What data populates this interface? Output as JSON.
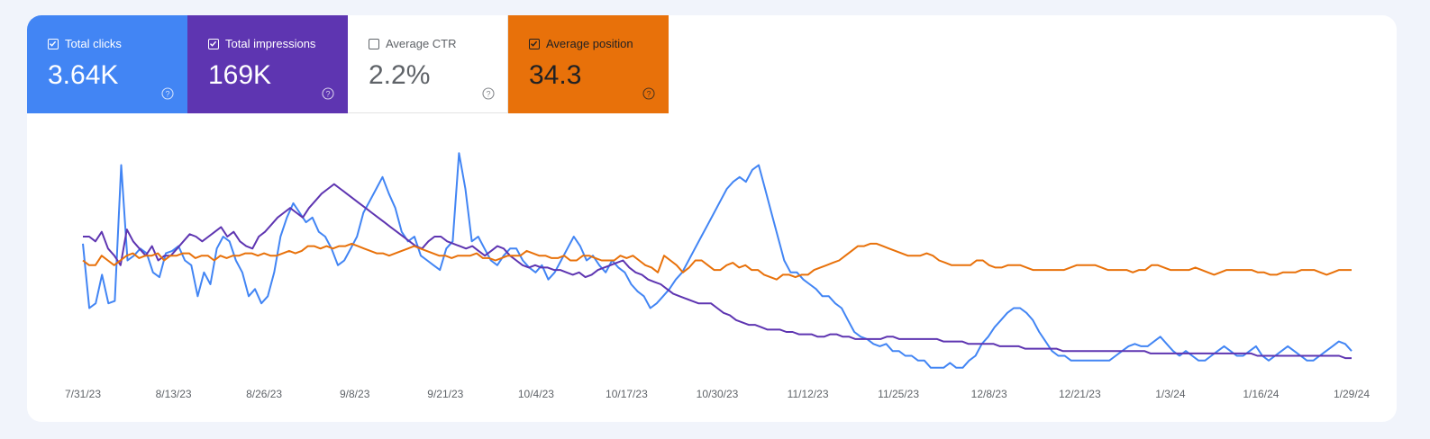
{
  "metrics": [
    {
      "label": "Total clicks",
      "value": "3.64K",
      "checked": true,
      "bg": "#4285f4",
      "fg": "#ffffff",
      "icon": "help-circle-icon"
    },
    {
      "label": "Total impressions",
      "value": "169K",
      "checked": true,
      "bg": "#5e35b1",
      "fg": "#ffffff",
      "icon": "help-circle-icon"
    },
    {
      "label": "Average CTR",
      "value": "2.2%",
      "checked": false,
      "bg": "#ffffff",
      "fg": "#5f6368",
      "icon": "help-circle-icon"
    },
    {
      "label": "Average position",
      "value": "34.3",
      "checked": true,
      "bg": "#e8710a",
      "fg": "#202124",
      "icon": "help-circle-icon"
    }
  ],
  "chart_data": {
    "type": "line",
    "title": "",
    "xlabel": "",
    "ylabel": "",
    "grid": false,
    "legend": "metric tiles above chart",
    "x_tick_labels": [
      "7/31/23",
      "8/13/23",
      "8/26/23",
      "9/8/23",
      "9/21/23",
      "10/4/23",
      "10/17/23",
      "10/30/23",
      "11/12/23",
      "11/25/23",
      "12/8/23",
      "12/21/23",
      "1/3/24",
      "1/16/24",
      "1/29/24"
    ],
    "x_range": [
      "7/31/23",
      "1/29/24"
    ],
    "series": [
      {
        "name": "Total clicks",
        "color": "#4285f4",
        "scale": "relative 0-100",
        "values": [
          57,
          30,
          32,
          44,
          32,
          33,
          90,
          50,
          52,
          55,
          53,
          45,
          43,
          53,
          54,
          56,
          50,
          48,
          35,
          45,
          40,
          55,
          60,
          58,
          50,
          45,
          35,
          38,
          32,
          35,
          45,
          60,
          68,
          74,
          70,
          66,
          68,
          62,
          60,
          55,
          48,
          50,
          55,
          60,
          70,
          75,
          80,
          85,
          78,
          72,
          62,
          58,
          60,
          52,
          50,
          48,
          46,
          55,
          58,
          95,
          80,
          58,
          60,
          55,
          50,
          48,
          52,
          55,
          55,
          50,
          47,
          45,
          48,
          42,
          45,
          50,
          55,
          60,
          56,
          50,
          52,
          48,
          45,
          50,
          47,
          45,
          40,
          37,
          35,
          30,
          32,
          35,
          38,
          42,
          45,
          50,
          55,
          60,
          65,
          70,
          75,
          80,
          83,
          85,
          83,
          88,
          90,
          80,
          70,
          60,
          50,
          45,
          45,
          42,
          40,
          38,
          35,
          35,
          32,
          30,
          25,
          20,
          18,
          17,
          15,
          14,
          15,
          12,
          12,
          10,
          10,
          8,
          8,
          5,
          5,
          5,
          7,
          5,
          5,
          8,
          10,
          15,
          18,
          22,
          25,
          28,
          30,
          30,
          28,
          25,
          20,
          16,
          12,
          10,
          10,
          8,
          8,
          8,
          8,
          8,
          8,
          8,
          10,
          12,
          14,
          15,
          14,
          14,
          16,
          18,
          15,
          12,
          10,
          12,
          10,
          8,
          8,
          10,
          12,
          14,
          12,
          10,
          10,
          12,
          14,
          10,
          8,
          10,
          12,
          14,
          12,
          10,
          8,
          8,
          10,
          12,
          14,
          16,
          15,
          12
        ]
      },
      {
        "name": "Total impressions",
        "color": "#5e35b1",
        "scale": "relative 0-100",
        "values": [
          60,
          60,
          58,
          62,
          55,
          52,
          48,
          63,
          58,
          55,
          52,
          56,
          50,
          52,
          52,
          55,
          58,
          61,
          60,
          58,
          60,
          62,
          64,
          60,
          62,
          58,
          56,
          55,
          60,
          62,
          65,
          68,
          70,
          72,
          70,
          68,
          72,
          75,
          78,
          80,
          82,
          80,
          78,
          76,
          74,
          72,
          70,
          68,
          66,
          64,
          62,
          60,
          58,
          56,
          55,
          58,
          60,
          60,
          58,
          57,
          56,
          55,
          56,
          54,
          52,
          54,
          56,
          55,
          52,
          50,
          48,
          47,
          48,
          47,
          47,
          46,
          46,
          45,
          44,
          45,
          43,
          44,
          46,
          47,
          48,
          49,
          50,
          47,
          45,
          44,
          42,
          41,
          40,
          38,
          36,
          35,
          34,
          33,
          32,
          32,
          32,
          30,
          28,
          27,
          25,
          24,
          23,
          23,
          22,
          21,
          21,
          21,
          20,
          20,
          19,
          19,
          19,
          18,
          18,
          19,
          19,
          18,
          18,
          17,
          17,
          17,
          17,
          17,
          18,
          18,
          17,
          17,
          17,
          17,
          17,
          17,
          17,
          16,
          16,
          16,
          16,
          15,
          15,
          15,
          15,
          15,
          14,
          14,
          14,
          14,
          13,
          13,
          13,
          13,
          13,
          13,
          12,
          12,
          12,
          12,
          12,
          12,
          12,
          12,
          12,
          12,
          12,
          12,
          12,
          12,
          11,
          11,
          11,
          11,
          11,
          11,
          11,
          11,
          11,
          11,
          11,
          11,
          11,
          11,
          11,
          11,
          11,
          10,
          10,
          10,
          10,
          10,
          10,
          10,
          10,
          10,
          10,
          10,
          10,
          10,
          10,
          9,
          9
        ]
      },
      {
        "name": "Average position",
        "color": "#e8710a",
        "scale": "relative 0-100",
        "values": [
          50,
          48,
          48,
          52,
          50,
          48,
          50,
          52,
          53,
          51,
          52,
          52,
          53,
          50,
          52,
          52,
          53,
          53,
          51,
          52,
          52,
          50,
          52,
          51,
          52,
          52,
          53,
          53,
          52,
          53,
          52,
          52,
          53,
          54,
          53,
          54,
          56,
          56,
          55,
          56,
          55,
          56,
          56,
          57,
          56,
          55,
          54,
          53,
          53,
          52,
          53,
          54,
          55,
          56,
          55,
          54,
          53,
          52,
          52,
          51,
          52,
          52,
          52,
          53,
          51,
          51,
          50,
          51,
          52,
          52,
          52,
          54,
          53,
          52,
          52,
          51,
          51,
          52,
          50,
          50,
          52,
          52,
          51,
          50,
          50,
          50,
          52,
          51,
          52,
          50,
          48,
          47,
          45,
          52,
          50,
          48,
          45,
          47,
          50,
          50,
          48,
          46,
          46,
          48,
          49,
          47,
          48,
          46,
          46,
          44,
          43,
          42,
          44,
          44,
          43,
          44,
          44,
          46,
          47,
          48,
          49,
          50,
          52,
          54,
          56,
          56,
          57,
          57,
          56,
          55,
          54,
          53,
          52,
          52,
          52,
          53,
          52,
          50,
          49,
          48,
          48,
          48,
          48,
          50,
          50,
          48,
          47,
          47,
          48,
          48,
          48,
          47,
          46,
          46,
          46,
          46,
          46,
          46,
          47,
          48,
          48,
          48,
          48,
          47,
          46,
          46,
          46,
          46,
          45,
          46,
          46,
          48,
          48,
          47,
          46,
          46,
          46,
          46,
          47,
          46,
          45,
          44,
          45,
          46,
          46,
          46,
          46,
          46,
          45,
          45,
          44,
          44,
          45,
          45,
          45,
          46,
          46,
          46,
          45,
          44,
          45,
          46,
          46,
          46
        ]
      }
    ]
  }
}
